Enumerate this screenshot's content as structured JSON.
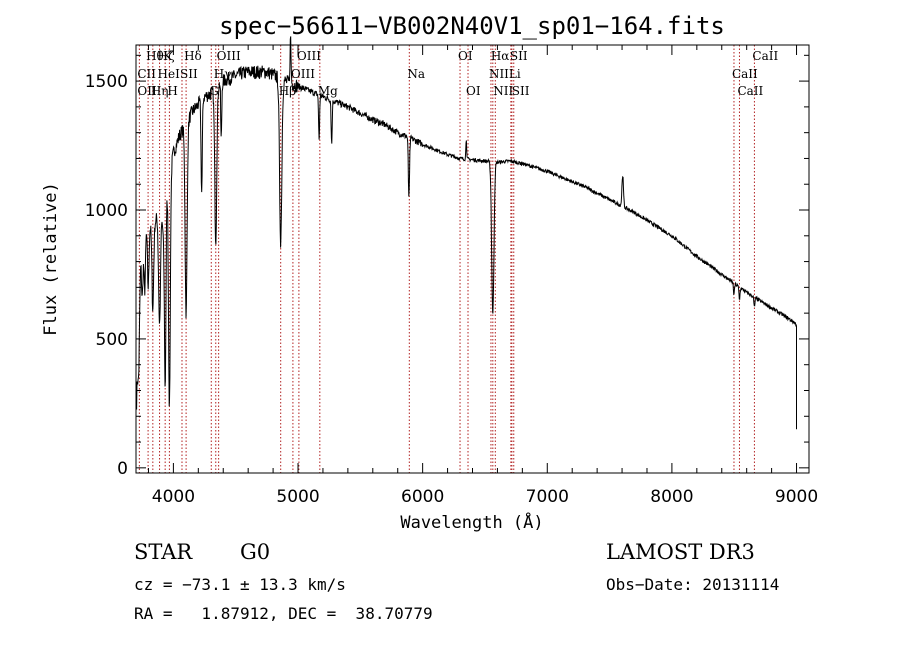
{
  "chart_data": {
    "type": "line",
    "title": "spec−56611−VB002N40V1_sp01−164.fits",
    "xlabel": "Wavelength (Å)",
    "ylabel": "Flux (relative)",
    "xlim": [
      3700,
      9100
    ],
    "ylim": [
      -20,
      1640
    ],
    "xticks": [
      4000,
      5000,
      6000,
      7000,
      8000,
      9000
    ],
    "yticks": [
      0,
      500,
      1000,
      1500
    ],
    "xminor_step": 200,
    "yminor_step": 100,
    "colors": {
      "spectrum": "#000000",
      "line_marker": "#b22222",
      "axes": "#000000"
    },
    "continuum": [
      [
        3705,
        280
      ],
      [
        3720,
        780
      ],
      [
        3750,
        880
      ],
      [
        3780,
        930
      ],
      [
        3820,
        940
      ],
      [
        3860,
        960
      ],
      [
        3880,
        1000
      ],
      [
        3900,
        1020
      ],
      [
        3920,
        900
      ],
      [
        3940,
        1060
      ],
      [
        3970,
        1140
      ],
      [
        4000,
        1220
      ],
      [
        4050,
        1290
      ],
      [
        4100,
        1330
      ],
      [
        4150,
        1380
      ],
      [
        4200,
        1410
      ],
      [
        4250,
        1440
      ],
      [
        4300,
        1450
      ],
      [
        4350,
        1480
      ],
      [
        4400,
        1500
      ],
      [
        4450,
        1510
      ],
      [
        4500,
        1520
      ],
      [
        4550,
        1530
      ],
      [
        4600,
        1535
      ],
      [
        4650,
        1535
      ],
      [
        4700,
        1535
      ],
      [
        4750,
        1535
      ],
      [
        4800,
        1525
      ],
      [
        4900,
        1500
      ],
      [
        5000,
        1480
      ],
      [
        5100,
        1460
      ],
      [
        5200,
        1440
      ],
      [
        5300,
        1420
      ],
      [
        5400,
        1400
      ],
      [
        5500,
        1375
      ],
      [
        5600,
        1350
      ],
      [
        5700,
        1330
      ],
      [
        5800,
        1300
      ],
      [
        5900,
        1280
      ],
      [
        6000,
        1255
      ],
      [
        6100,
        1235
      ],
      [
        6200,
        1215
      ],
      [
        6300,
        1200
      ],
      [
        6400,
        1195
      ],
      [
        6500,
        1190
      ],
      [
        6600,
        1185
      ],
      [
        6700,
        1190
      ],
      [
        6800,
        1180
      ],
      [
        6900,
        1165
      ],
      [
        7000,
        1150
      ],
      [
        7100,
        1130
      ],
      [
        7200,
        1110
      ],
      [
        7300,
        1090
      ],
      [
        7400,
        1065
      ],
      [
        7500,
        1040
      ],
      [
        7600,
        1015
      ],
      [
        7700,
        990
      ],
      [
        7800,
        960
      ],
      [
        7900,
        930
      ],
      [
        8000,
        900
      ],
      [
        8100,
        860
      ],
      [
        8200,
        820
      ],
      [
        8300,
        785
      ],
      [
        8400,
        750
      ],
      [
        8500,
        715
      ],
      [
        8600,
        680
      ],
      [
        8700,
        650
      ],
      [
        8800,
        620
      ],
      [
        8900,
        590
      ],
      [
        8980,
        565
      ],
      [
        9000,
        555
      ]
    ],
    "absorption": [
      [
        3720,
        0.55,
        8
      ],
      [
        3750,
        0.25,
        6
      ],
      [
        3770,
        0.25,
        6
      ],
      [
        3798,
        0.25,
        6
      ],
      [
        3835,
        0.35,
        7
      ],
      [
        3889,
        0.45,
        8
      ],
      [
        3934,
        0.7,
        6
      ],
      [
        3968,
        0.8,
        7
      ],
      [
        4102,
        0.55,
        8
      ],
      [
        4227,
        0.25,
        5
      ],
      [
        4340,
        0.4,
        8
      ],
      [
        4384,
        0.15,
        4
      ],
      [
        4861,
        0.42,
        9
      ],
      [
        5169,
        0.12,
        4
      ],
      [
        5270,
        0.12,
        4
      ],
      [
        5890,
        0.18,
        5
      ],
      [
        6563,
        0.5,
        9
      ],
      [
        8498,
        0.06,
        4
      ],
      [
        8542,
        0.07,
        4
      ],
      [
        8662,
        0.06,
        4
      ]
    ],
    "emission": [
      [
        4940,
        0.12,
        4
      ],
      [
        6350,
        0.07,
        3
      ],
      [
        7605,
        0.12,
        6
      ]
    ],
    "noise_amplitude": 18,
    "noise_seed": 7,
    "spectral_lines": [
      {
        "label": "Hθ",
        "wavelength": 3797,
        "row": 0
      },
      {
        "label": "CII",
        "wavelength": 3727,
        "row": 1
      },
      {
        "label": "OII",
        "wavelength": 3727,
        "row": 2
      },
      {
        "label": "Hη",
        "wavelength": 3835,
        "row": 2
      },
      {
        "label": "Hζ",
        "wavelength": 3889,
        "row": 0
      },
      {
        "label": "HeI",
        "wavelength": 3889,
        "row": 1
      },
      {
        "label": "K",
        "wavelength": 3934,
        "row": 0
      },
      {
        "label": "H",
        "wavelength": 3968,
        "row": 2
      },
      {
        "label": "SII",
        "wavelength": 4069,
        "row": 1
      },
      {
        "label": "Hδ",
        "wavelength": 4102,
        "row": 0
      },
      {
        "label": "G",
        "wavelength": 4304,
        "row": 2
      },
      {
        "label": "OIII",
        "wavelength": 4363,
        "row": 0
      },
      {
        "label": "Hγ",
        "wavelength": 4340,
        "row": 1
      },
      {
        "label": "Hβ",
        "wavelength": 4861,
        "row": 2
      },
      {
        "label": "OIII",
        "wavelength": 5007,
        "row": 0
      },
      {
        "label": "OIII",
        "wavelength": 4959,
        "row": 1
      },
      {
        "label": "Mg",
        "wavelength": 5175,
        "row": 2
      },
      {
        "label": "Na",
        "wavelength": 5893,
        "row": 1
      },
      {
        "label": "OI",
        "wavelength": 6300,
        "row": 0
      },
      {
        "label": "OI",
        "wavelength": 6364,
        "row": 2
      },
      {
        "label": "Hα",
        "wavelength": 6563,
        "row": 0
      },
      {
        "label": "NII",
        "wavelength": 6548,
        "row": 1
      },
      {
        "label": "NII",
        "wavelength": 6583,
        "row": 2
      },
      {
        "label": "SII",
        "wavelength": 6716,
        "row": 0
      },
      {
        "label": "Li",
        "wavelength": 6708,
        "row": 1
      },
      {
        "label": "SII",
        "wavelength": 6731,
        "row": 2
      },
      {
        "label": "CaII",
        "wavelength": 8662,
        "row": 0
      },
      {
        "label": "CaII",
        "wavelength": 8498,
        "row": 1
      },
      {
        "label": "CaII",
        "wavelength": 8542,
        "row": 2
      }
    ]
  },
  "info": {
    "object_class": "STAR",
    "subclass": "G0",
    "survey": "LAMOST DR3",
    "redshift": "cz = −73.1 ± 13.3 km/s",
    "obs_date": "Obs−Date: 20131114",
    "coords": "RA =   1.87912, DEC =  38.70779"
  }
}
